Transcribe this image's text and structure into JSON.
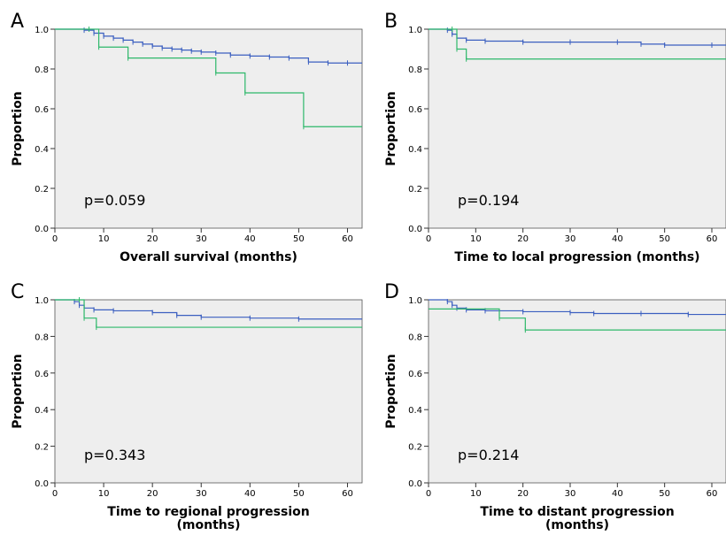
{
  "chart_data": [
    {
      "type": "line",
      "panel": "A",
      "pvalue": "p=0.059",
      "xlabel": "Overall survival (months)",
      "ylabel": "Proportion",
      "xlim": [
        0,
        63
      ],
      "ylim": [
        0,
        1.0
      ],
      "xticks": [
        "0",
        "10",
        "20",
        "30",
        "40",
        "50",
        "60"
      ],
      "yticks": [
        "0.0",
        "0.2",
        "0.4",
        "0.6",
        "0.8",
        "1.0"
      ],
      "series": [
        {
          "color": "#3b5fc0",
          "x": [
            0,
            6,
            8,
            10,
            12,
            14,
            16,
            18,
            20,
            22,
            24,
            26,
            28,
            30,
            33,
            36,
            40,
            44,
            48,
            52,
            56,
            60,
            63
          ],
          "y": [
            1.0,
            0.995,
            0.98,
            0.965,
            0.955,
            0.945,
            0.935,
            0.925,
            0.915,
            0.905,
            0.9,
            0.895,
            0.89,
            0.885,
            0.88,
            0.87,
            0.865,
            0.86,
            0.855,
            0.835,
            0.83,
            0.83,
            0.83
          ]
        },
        {
          "color": "#2db86a",
          "x": [
            0,
            7,
            9,
            15,
            33,
            39,
            51,
            63
          ],
          "y": [
            1.0,
            1.0,
            0.91,
            0.855,
            0.78,
            0.68,
            0.51,
            0.51
          ]
        }
      ]
    },
    {
      "type": "line",
      "panel": "B",
      "pvalue": "p=0.194",
      "xlabel": "Time to local progression (months)",
      "ylabel": "Proportion",
      "xlim": [
        0,
        63
      ],
      "ylim": [
        0,
        1.0
      ],
      "xticks": [
        "0",
        "10",
        "20",
        "30",
        "40",
        "50",
        "60"
      ],
      "yticks": [
        "0.0",
        "0.2",
        "0.4",
        "0.6",
        "0.8",
        "1.0"
      ],
      "series": [
        {
          "color": "#3b5fc0",
          "x": [
            0,
            4,
            5,
            6,
            8,
            12,
            20,
            30,
            40,
            45,
            50,
            60,
            63
          ],
          "y": [
            1.0,
            0.995,
            0.975,
            0.955,
            0.945,
            0.94,
            0.935,
            0.935,
            0.935,
            0.925,
            0.92,
            0.92,
            0.92
          ]
        },
        {
          "color": "#2db86a",
          "x": [
            0,
            5,
            6,
            8,
            63
          ],
          "y": [
            1.0,
            1.0,
            0.9,
            0.85,
            0.85
          ]
        }
      ]
    },
    {
      "type": "line",
      "panel": "C",
      "pvalue": "p=0.343",
      "xlabel": "Time to regional progression\n(months)",
      "ylabel": "Proportion",
      "xlim": [
        0,
        63
      ],
      "ylim": [
        0,
        1.0
      ],
      "xticks": [
        "0",
        "10",
        "20",
        "30",
        "40",
        "50",
        "60"
      ],
      "yticks": [
        "0.0",
        "0.2",
        "0.4",
        "0.6",
        "0.8",
        "1.0"
      ],
      "series": [
        {
          "color": "#3b5fc0",
          "x": [
            0,
            4,
            5,
            6,
            8,
            12,
            20,
            25,
            30,
            40,
            50,
            63
          ],
          "y": [
            1.0,
            0.99,
            0.97,
            0.955,
            0.945,
            0.94,
            0.93,
            0.915,
            0.905,
            0.9,
            0.895,
            0.895
          ]
        },
        {
          "color": "#2db86a",
          "x": [
            0,
            5,
            6,
            8.5,
            63
          ],
          "y": [
            1.0,
            1.0,
            0.9,
            0.85,
            0.85
          ]
        }
      ]
    },
    {
      "type": "line",
      "panel": "D",
      "pvalue": "p=0.214",
      "xlabel": "Time to distant progression\n(months)",
      "ylabel": "Proportion",
      "xlim": [
        0,
        63
      ],
      "ylim": [
        0,
        1.0
      ],
      "xticks": [
        "0",
        "10",
        "20",
        "30",
        "40",
        "50",
        "60"
      ],
      "yticks": [
        "0.0",
        "0.2",
        "0.4",
        "0.6",
        "0.8",
        "1.0"
      ],
      "series": [
        {
          "color": "#3b5fc0",
          "x": [
            0,
            4,
            5,
            6,
            8,
            12,
            20,
            30,
            35,
            45,
            55,
            63
          ],
          "y": [
            1.0,
            0.99,
            0.97,
            0.955,
            0.945,
            0.94,
            0.935,
            0.93,
            0.925,
            0.925,
            0.92,
            0.92
          ]
        },
        {
          "color": "#2db86a",
          "x": [
            0,
            15,
            20.5,
            63
          ],
          "y": [
            0.95,
            0.9,
            0.835,
            0.835
          ]
        }
      ]
    }
  ]
}
